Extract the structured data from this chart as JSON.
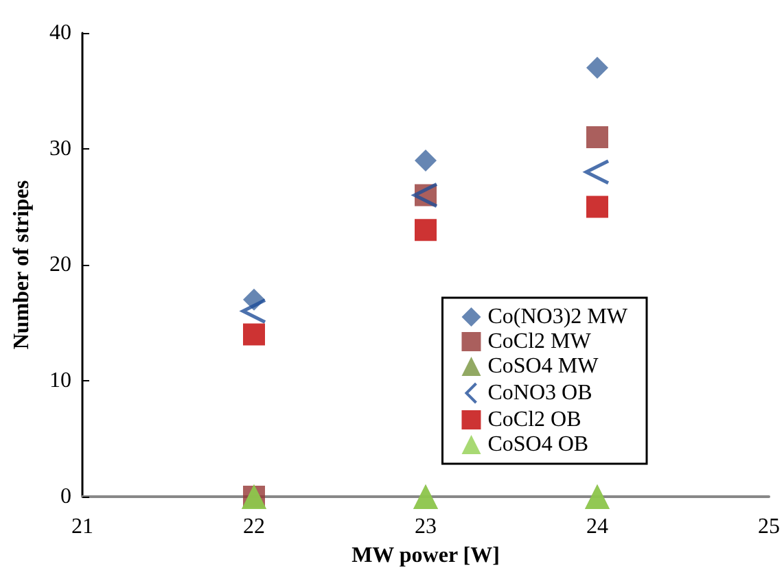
{
  "chart_data": {
    "type": "scatter",
    "xlabel": "MW power [W]",
    "ylabel": "Number of stripes",
    "x": [
      22,
      23,
      24
    ],
    "series": [
      {
        "name": "Co(NO3)2 MW",
        "color": "#4068a0",
        "marker": "diamond",
        "values": [
          17,
          29,
          37
        ]
      },
      {
        "name": "CoCl2 MW",
        "color": "#953735",
        "marker": "square",
        "values": [
          0,
          26,
          31
        ]
      },
      {
        "name": "CoSO4 MW",
        "color": "#77933c",
        "marker": "triangle",
        "values": [
          0,
          0,
          0
        ]
      },
      {
        "name": "CoNO3 OB",
        "color": "#1f4e99",
        "marker": "cross",
        "values": [
          16,
          26,
          28
        ]
      },
      {
        "name": "CoCl2 OB",
        "color": "#c00000",
        "marker": "square",
        "values": [
          14,
          23,
          25
        ]
      },
      {
        "name": "CoSO4 OB",
        "color": "#92d050",
        "marker": "triangle",
        "values": [
          0,
          0,
          0
        ]
      }
    ],
    "xlim": [
      21,
      25
    ],
    "xticks": [
      21,
      22,
      23,
      24,
      25
    ],
    "ylim": [
      0,
      40
    ],
    "yticks": [
      0,
      10,
      20,
      30,
      40
    ],
    "grid": false,
    "legend": "bottom right"
  }
}
